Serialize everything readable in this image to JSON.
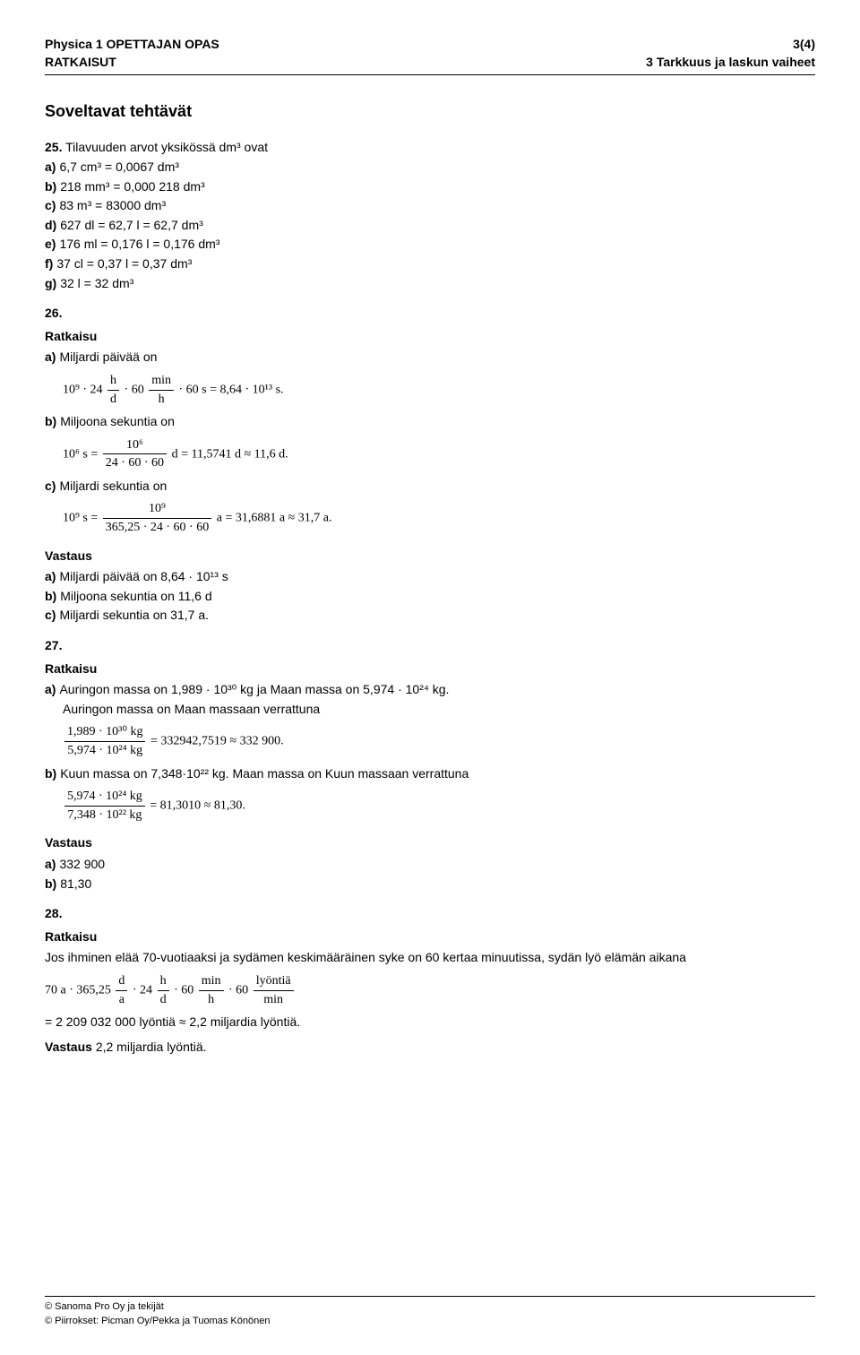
{
  "header": {
    "left_line1": "Physica 1 OPETTAJAN OPAS",
    "left_line2": "RATKAISUT",
    "right_line1": "3(4)",
    "right_line2": "3 Tarkkuus ja laskun vaiheet"
  },
  "section_title": "Soveltavat tehtävät",
  "q25": {
    "num": "25.",
    "intro": "Tilavuuden arvot yksikössä dm³ ovat",
    "a": "6,7 cm³ = 0,0067 dm³",
    "b": "218 mm³ = 0,000 218 dm³",
    "c": "83 m³ = 83000 dm³",
    "d": "627 dl = 62,7 l = 62,7 dm³",
    "e": "176 ml = 0,176 l = 0,176 dm³",
    "f": "37 cl = 0,37 l = 0,37 dm³",
    "g": "32 l = 32 dm³"
  },
  "q26": {
    "num": "26.",
    "ratkaisu": "Ratkaisu",
    "a_label": "a)",
    "a_text": "Miljardi päivää on",
    "a_math_pre": "10⁹ · 24",
    "a_frac1_num": "h",
    "a_frac1_den": "d",
    "a_math_mid1": "· 60",
    "a_frac2_num": "min",
    "a_frac2_den": "h",
    "a_math_tail": "· 60 s = 8,64 · 10¹³ s.",
    "b_label": "b)",
    "b_text": "Miljoona sekuntia on",
    "b_math_pre": "10⁶ s =",
    "b_frac_num": "10⁶",
    "b_frac_den": "24 · 60 · 60",
    "b_math_tail": "d = 11,5741 d ≈ 11,6 d.",
    "c_label": "c)",
    "c_text": "Miljardi sekuntia on",
    "c_math_pre": "10⁹ s =",
    "c_frac_num": "10⁹",
    "c_frac_den": "365,25 · 24 · 60 · 60",
    "c_math_tail": "a = 31,6881 a ≈ 31,7 a.",
    "vastaus": "Vastaus",
    "va": "Miljardi päivää on 8,64 · 10¹³ s",
    "vb": "Miljoona sekuntia on 11,6 d",
    "vc": "Miljardi sekuntia on 31,7 a."
  },
  "q27": {
    "num": "27.",
    "ratkaisu": "Ratkaisu",
    "a_label": "a)",
    "a_line1": "Auringon massa on 1,989 · 10³⁰ kg ja Maan massa on 5,974 · 10²⁴ kg.",
    "a_line2": "Auringon massa on Maan massaan verrattuna",
    "a_frac_num": "1,989 · 10³⁰ kg",
    "a_frac_den": "5,974 · 10²⁴ kg",
    "a_tail": "= 332942,7519 ≈ 332 900.",
    "b_label": "b)",
    "b_line": "Kuun massa on 7,348·10²² kg. Maan massa on Kuun massaan verrattuna",
    "b_frac_num": "5,974 · 10²⁴ kg",
    "b_frac_den": "7,348 · 10²² kg",
    "b_tail": "= 81,3010 ≈ 81,30.",
    "vastaus": "Vastaus",
    "va": "332 900",
    "vb": "81,30"
  },
  "q28": {
    "num": "28.",
    "ratkaisu": "Ratkaisu",
    "intro": "Jos ihminen elää 70-vuotiaaksi ja sydämen keskimääräinen syke on 60 kertaa minuutissa, sydän lyö elämän aikana",
    "m_pre": "70 a · 365,25",
    "f1_num": "d",
    "f1_den": "a",
    "m_mid1": "· 24",
    "f2_num": "h",
    "f2_den": "d",
    "m_mid2": "· 60",
    "f3_num": "min",
    "f3_den": "h",
    "m_mid3": "· 60",
    "f4_num": "lyöntiä",
    "f4_den": "min",
    "result": "= 2 209 032 000 lyöntiä ≈ 2,2 miljardia lyöntiä.",
    "vastaus_full": "Vastaus 2,2 miljardia lyöntiä."
  },
  "footer": {
    "l1": "© Sanoma Pro Oy ja tekijät",
    "l2": "© Piirrokset: Picman Oy/Pekka ja Tuomas Könönen"
  },
  "labels": {
    "a": "a)",
    "b": "b)",
    "c": "c)",
    "d": "d)",
    "e": "e)",
    "f": "f)",
    "g": "g)"
  }
}
